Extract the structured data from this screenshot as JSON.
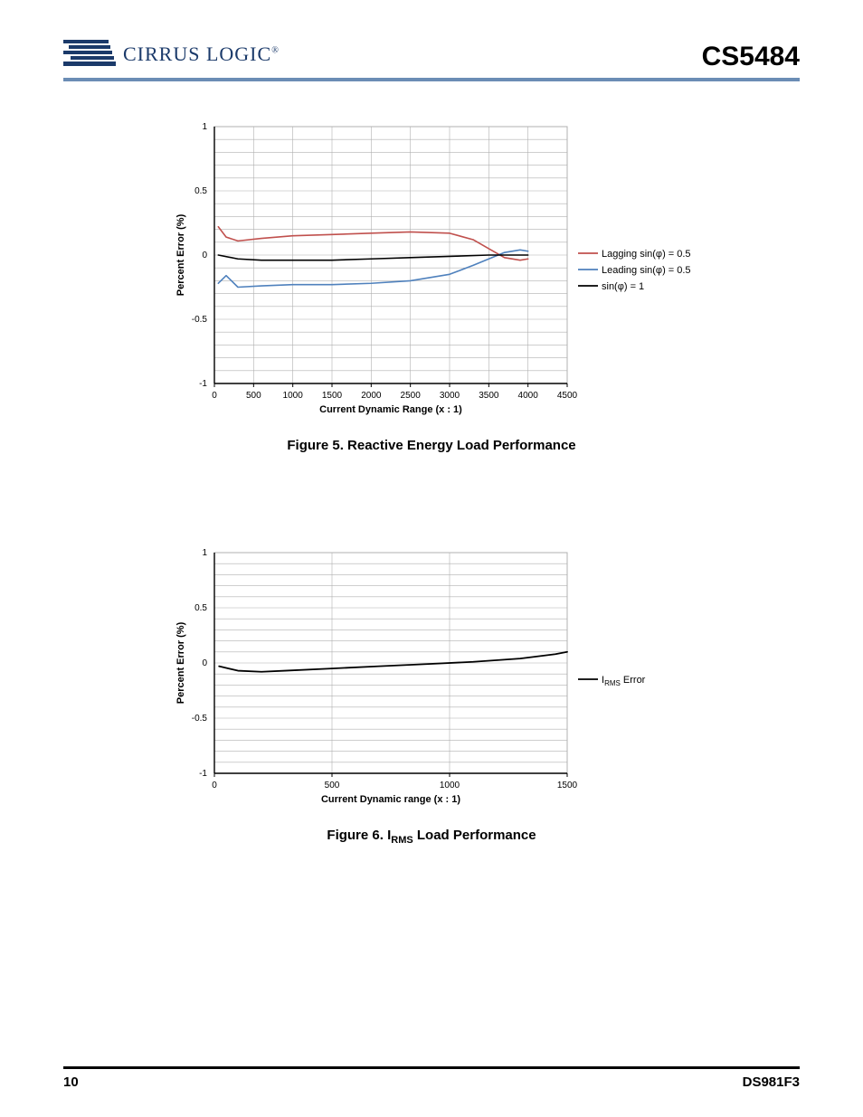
{
  "header": {
    "company_name": "CIRRUS LOGIC",
    "part_number": "CS5484",
    "logo_bar_color": "#1b3a6a",
    "header_rule_color": "#6b8db5"
  },
  "footer": {
    "page_number": "10",
    "doc_code": "DS981F3",
    "rule_color": "#000000"
  },
  "chart1": {
    "type": "line",
    "caption": "Figure 5.  Reactive Energy Load Performance",
    "x_label": "Current Dynamic Range (x : 1)",
    "y_label": "Percent Error (%)",
    "xlim": [
      0,
      4500
    ],
    "ylim": [
      -1,
      1
    ],
    "x_tick_step": 500,
    "y_tick_step": 0.5,
    "y_minor_step": 0.1,
    "grid_color": "#b0b0b0",
    "axis_color": "#000000",
    "background_color": "#ffffff",
    "label_fontsize": 11,
    "tick_fontsize": 10,
    "line_width": 1.6,
    "legend": [
      {
        "label": "Lagging sin(φ) = 0.5",
        "color": "#c0504d"
      },
      {
        "label": "Leading sin(φ) = 0.5",
        "color": "#4f81bd"
      },
      {
        "label": "sin(φ) = 1",
        "color": "#000000"
      }
    ],
    "series": [
      {
        "name": "lagging",
        "color": "#c0504d",
        "points": [
          [
            50,
            0.22
          ],
          [
            150,
            0.14
          ],
          [
            300,
            0.11
          ],
          [
            600,
            0.13
          ],
          [
            1000,
            0.15
          ],
          [
            1500,
            0.16
          ],
          [
            2000,
            0.17
          ],
          [
            2500,
            0.18
          ],
          [
            3000,
            0.17
          ],
          [
            3300,
            0.12
          ],
          [
            3500,
            0.05
          ],
          [
            3700,
            -0.02
          ],
          [
            3900,
            -0.04
          ],
          [
            4000,
            -0.03
          ]
        ]
      },
      {
        "name": "leading",
        "color": "#4f81bd",
        "points": [
          [
            50,
            -0.22
          ],
          [
            150,
            -0.16
          ],
          [
            300,
            -0.25
          ],
          [
            600,
            -0.24
          ],
          [
            1000,
            -0.23
          ],
          [
            1500,
            -0.23
          ],
          [
            2000,
            -0.22
          ],
          [
            2500,
            -0.2
          ],
          [
            3000,
            -0.15
          ],
          [
            3300,
            -0.08
          ],
          [
            3500,
            -0.03
          ],
          [
            3700,
            0.02
          ],
          [
            3900,
            0.04
          ],
          [
            4000,
            0.03
          ]
        ]
      },
      {
        "name": "unity",
        "color": "#000000",
        "points": [
          [
            50,
            0.0
          ],
          [
            300,
            -0.03
          ],
          [
            600,
            -0.04
          ],
          [
            1000,
            -0.04
          ],
          [
            1500,
            -0.04
          ],
          [
            2000,
            -0.03
          ],
          [
            2500,
            -0.02
          ],
          [
            3000,
            -0.01
          ],
          [
            3500,
            0.0
          ],
          [
            4000,
            0.0
          ]
        ]
      }
    ]
  },
  "chart2": {
    "type": "line",
    "caption_prefix": "Figure 6.  I",
    "caption_sub": "RMS",
    "caption_suffix": " Load Performance",
    "x_label": "Current Dynamic range (x : 1)",
    "y_label": "Percent Error (%)",
    "xlim": [
      0,
      1500
    ],
    "ylim": [
      -1,
      1
    ],
    "x_tick_step": 500,
    "y_tick_step": 0.5,
    "y_minor_step": 0.1,
    "grid_color": "#b0b0b0",
    "axis_color": "#000000",
    "background_color": "#ffffff",
    "label_fontsize": 11,
    "tick_fontsize": 10,
    "line_width": 1.8,
    "legend": [
      {
        "label_prefix": "I",
        "label_sub": "RMS",
        "label_suffix": " Error",
        "color": "#000000"
      }
    ],
    "series": [
      {
        "name": "irms",
        "color": "#000000",
        "points": [
          [
            20,
            -0.03
          ],
          [
            100,
            -0.07
          ],
          [
            200,
            -0.08
          ],
          [
            300,
            -0.07
          ],
          [
            500,
            -0.05
          ],
          [
            700,
            -0.03
          ],
          [
            900,
            -0.01
          ],
          [
            1100,
            0.01
          ],
          [
            1300,
            0.04
          ],
          [
            1450,
            0.08
          ],
          [
            1500,
            0.1
          ]
        ]
      }
    ]
  }
}
